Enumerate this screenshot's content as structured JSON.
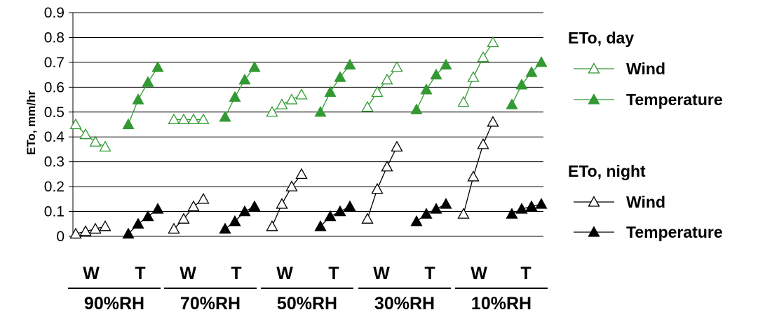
{
  "chart_data": {
    "type": "line",
    "ylabel": "ETo, mm/hr",
    "ylim": [
      0,
      0.9
    ],
    "yticks": [
      "0",
      "0.1",
      "0.2",
      "0.3",
      "0.4",
      "0.5",
      "0.6",
      "0.7",
      "0.8",
      "0.9"
    ],
    "grid": true,
    "legend_position": "right",
    "groups": [
      {
        "label": "90%RH",
        "subgroups": [
          "W",
          "T"
        ]
      },
      {
        "label": "70%RH",
        "subgroups": [
          "W",
          "T"
        ]
      },
      {
        "label": "50%RH",
        "subgroups": [
          "W",
          "T"
        ]
      },
      {
        "label": "30%RH",
        "subgroups": [
          "W",
          "T"
        ]
      },
      {
        "label": "10%RH",
        "subgroups": [
          "W",
          "T"
        ]
      }
    ],
    "legend": [
      {
        "title": "ETo, day",
        "entries": [
          {
            "label": "Wind",
            "color": "#339933",
            "marker": "open-triangle"
          },
          {
            "label": "Temperature",
            "color": "#339933",
            "marker": "filled-triangle"
          }
        ]
      },
      {
        "title": "ETo, night",
        "entries": [
          {
            "label": "Wind",
            "color": "#000000",
            "marker": "open-triangle"
          },
          {
            "label": "Temperature",
            "color": "#000000",
            "marker": "filled-triangle"
          }
        ]
      }
    ],
    "series": [
      {
        "period": "day",
        "factor": "Wind",
        "values": [
          [
            0.45,
            0.41,
            0.38,
            0.36
          ],
          [
            0.47,
            0.47,
            0.47,
            0.47
          ],
          [
            0.5,
            0.53,
            0.55,
            0.57
          ],
          [
            0.52,
            0.58,
            0.63,
            0.68
          ],
          [
            0.54,
            0.64,
            0.72,
            0.78
          ]
        ]
      },
      {
        "period": "day",
        "factor": "Temperature",
        "values": [
          [
            0.45,
            0.55,
            0.62,
            0.68
          ],
          [
            0.48,
            0.56,
            0.63,
            0.68
          ],
          [
            0.5,
            0.58,
            0.64,
            0.69
          ],
          [
            0.51,
            0.59,
            0.65,
            0.69
          ],
          [
            0.53,
            0.61,
            0.66,
            0.7
          ]
        ]
      },
      {
        "period": "night",
        "factor": "Wind",
        "values": [
          [
            0.01,
            0.02,
            0.03,
            0.04
          ],
          [
            0.03,
            0.07,
            0.12,
            0.15
          ],
          [
            0.04,
            0.13,
            0.2,
            0.25
          ],
          [
            0.07,
            0.19,
            0.28,
            0.36
          ],
          [
            0.09,
            0.24,
            0.37,
            0.46
          ]
        ]
      },
      {
        "period": "night",
        "factor": "Temperature",
        "values": [
          [
            0.01,
            0.05,
            0.08,
            0.11
          ],
          [
            0.03,
            0.06,
            0.1,
            0.12
          ],
          [
            0.04,
            0.08,
            0.1,
            0.12
          ],
          [
            0.06,
            0.09,
            0.11,
            0.13
          ],
          [
            0.09,
            0.11,
            0.12,
            0.13
          ]
        ]
      }
    ],
    "colors": {
      "day": "#339933",
      "night": "#000000",
      "grid": "#000000"
    }
  }
}
